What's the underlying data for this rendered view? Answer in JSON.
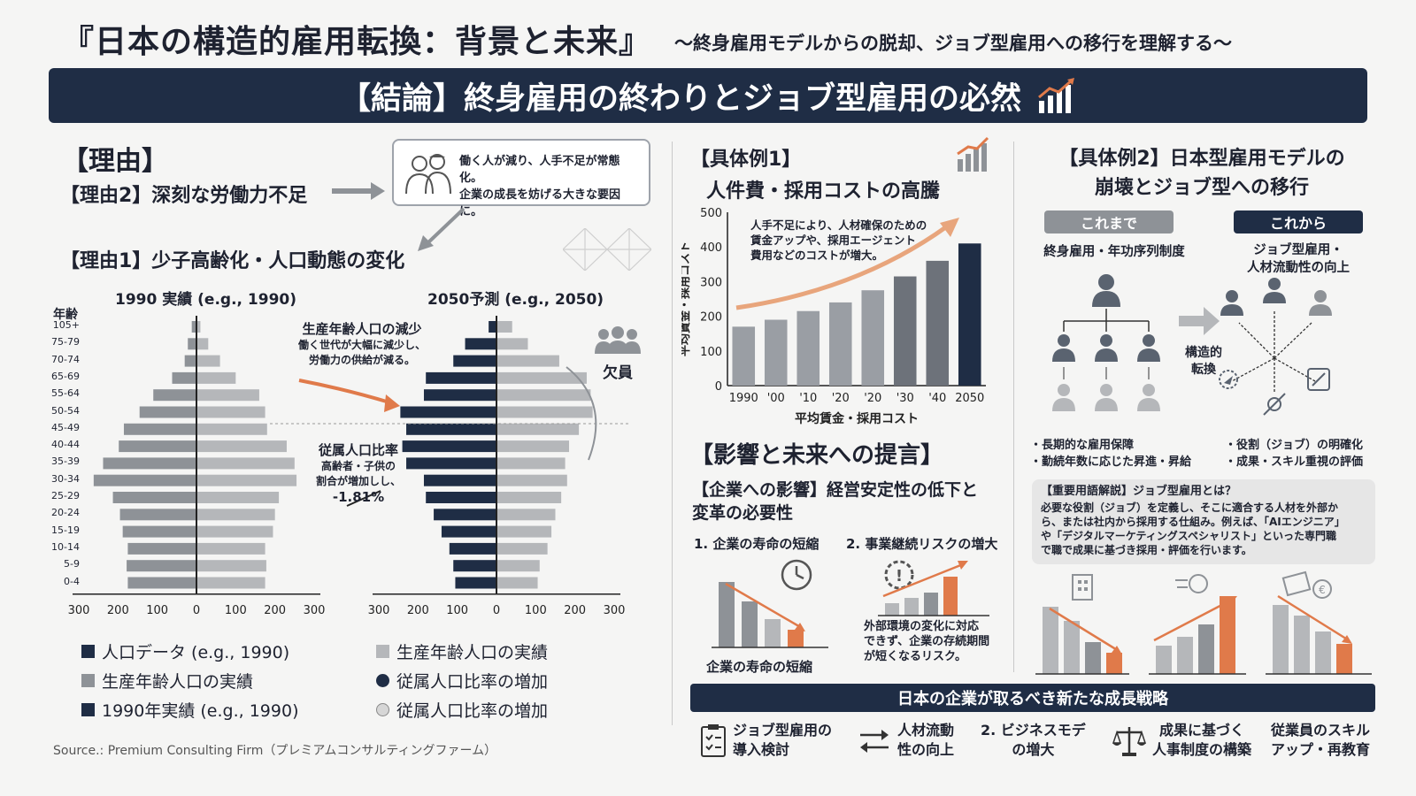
{
  "header": {
    "title": "『日本の構造的雇用転換：背景と未来』",
    "subtitle": "〜終身雇用モデルからの脱却、ジョブ型雇用への移行を理解する〜"
  },
  "banner": {
    "text": "【結論】終身雇用の終わりとジョブ型雇用の必然"
  },
  "left": {
    "heading": "【理由】",
    "reason2": "【理由2】深刻な労働力不足",
    "callout_line1": "働く人が減り、人手不足が常態化。",
    "callout_line2": "企業の成長を妨げる大きな要因に。",
    "reason1": "【理由1】少子高齢化・人口動態の変化",
    "pyr1990_title": "1990 実績 (e.g., 1990)",
    "pyr2050_title": "2050予測 (e.g., 2050)",
    "age_axis": "年齢",
    "ages": [
      "105+",
      "75-79",
      "70-74",
      "65-69",
      "55-64",
      "50-54",
      "45-49",
      "40-44",
      "35-39",
      "30-34",
      "25-29",
      "20-24",
      "15-19",
      "10-14",
      "5-9",
      "0-4"
    ],
    "axis_ticks": [
      "300",
      "200",
      "100",
      "0",
      "100",
      "200",
      "300"
    ],
    "ann_decline_title": "生産年齢人口の減少",
    "ann_decline_l1": "働く世代が大幅に減少し、",
    "ann_decline_l2": "労働力の供給が減る。",
    "ann_dep_title": "従属人口比率",
    "ann_dep_l1": "高齢者・子供の",
    "ann_dep_l2": "割合が増加しし、",
    "ann_dep_value": "-1.81%",
    "vacancy": "欠員",
    "legend": [
      {
        "label": "人口データ (e.g., 1990)",
        "color": "#1f2d45",
        "shape": "square"
      },
      {
        "label": "生産年齢人口の実績",
        "color": "#8e9297",
        "shape": "square"
      },
      {
        "label": "1990年実績 (e.g., 1990)",
        "color": "#1f2d45",
        "shape": "square"
      },
      {
        "label": "生産年齢人口の実績",
        "color": "#b5b7ba",
        "shape": "square"
      },
      {
        "label": "従属人口比率の増加",
        "color": "#1f2d45",
        "shape": "circle"
      },
      {
        "label": "従属人口比率の増加",
        "color": "#d6d6d6",
        "shape": "circle"
      }
    ],
    "source": "Source.: Premium Consulting Firm（プレミアムコンサルティングファーム）"
  },
  "pyramid_data": {
    "p1990": [
      12,
      22,
      30,
      62,
      110,
      145,
      185,
      198,
      238,
      262,
      213,
      195,
      188,
      175,
      178,
      175
    ],
    "p1990_right": [
      10,
      30,
      60,
      100,
      160,
      175,
      180,
      230,
      250,
      255,
      210,
      200,
      195,
      175,
      178,
      175
    ],
    "p2050_left": [
      20,
      80,
      110,
      180,
      185,
      245,
      230,
      240,
      230,
      185,
      180,
      160,
      140,
      120,
      110,
      105
    ],
    "p2050_right": [
      40,
      80,
      160,
      230,
      240,
      245,
      210,
      185,
      175,
      180,
      165,
      150,
      140,
      130,
      110,
      105
    ]
  },
  "mid": {
    "ex1_heading": "【具体例1】",
    "ex1_title": "人件費・採用コストの高騰",
    "chart_note_l1": "人手不足により、人材確保のための",
    "chart_note_l2": "賃金アップや、採用エージェント",
    "chart_note_l3": "費用などのコストが増大。",
    "impact_heading": "【影響と未来への提言】",
    "impact_sub_l1": "【企業への影響】経営安定性の低下と",
    "impact_sub_l2": "変革の必要性",
    "point1": "1. 企業の寿命の短縮",
    "point2": "2. 事業継続リスクの増大",
    "point1_caption": "企業の寿命の短縮",
    "point2_l1": "外部環境の変化に対応",
    "point2_l2": "できず、企業の存続期間",
    "point2_l3": "が短くなるリスク。"
  },
  "chart_data": {
    "type": "bar",
    "categories": [
      "1990",
      "'00",
      "'10",
      "'20",
      "'20",
      "'30",
      "'40",
      "2050"
    ],
    "values": [
      170,
      190,
      215,
      240,
      275,
      315,
      360,
      410
    ],
    "title": "",
    "xlabel": "平均賃金・採用コスト",
    "ylabel": "平均賃金・採用コスト",
    "ylim": [
      0,
      500
    ],
    "yticks": [
      "0",
      "100",
      "200",
      "300",
      "400",
      "500"
    ],
    "grid": false
  },
  "right": {
    "ex2_l1": "【具体例2】日本型雇用モデルの",
    "ex2_l2": "崩壊とジョブ型への移行",
    "before_pill": "これまで",
    "after_pill": "これから",
    "before_label": "終身雇用・年功序列制度",
    "after_l1": "ジョブ型雇用・",
    "after_l2": "人材流動性の向上",
    "transition_l1": "構造的",
    "transition_l2": "転換",
    "before_b1": "・長期的な雇用保障",
    "before_b2": "・勤続年数に応じた昇進・昇給",
    "after_b1": "・役割（ジョブ）の明確化",
    "after_b2": "・成果・スキル重視の評価",
    "gloss_title": "【重要用語解説】ジョブ型雇用とは？",
    "gloss_l1": "必要な役割（ジョブ）を定義し、そこに適合する人材を外部か",
    "gloss_l2": "ら、または社内から採用する仕組み。例えば、「AIエンジニア」",
    "gloss_l3": "や「デジタルマーケティングスペシャリスト」といった専門職",
    "gloss_l4": "で職で成果に基づき採用・評価を行います。"
  },
  "bottom": {
    "bar": "日本の企業が取るべき新たな成長戦略",
    "s1_l1": "ジョブ型雇用の",
    "s1_l2": "導入検討",
    "s2_l1": "人材流動",
    "s2_l2": "性の向上",
    "s3_l1": "2. ビジネスモデ",
    "s3_l2": "の増大",
    "s4_l1": "成果に基づく",
    "s4_l2": "人事制度の構築",
    "s5_l1": "従業員のスキル",
    "s5_l2": "アップ・再教育"
  },
  "colors": {
    "navy": "#1f2d45",
    "gray": "#8e9297",
    "light": "#b5b7ba",
    "accent": "#e07a4a"
  }
}
